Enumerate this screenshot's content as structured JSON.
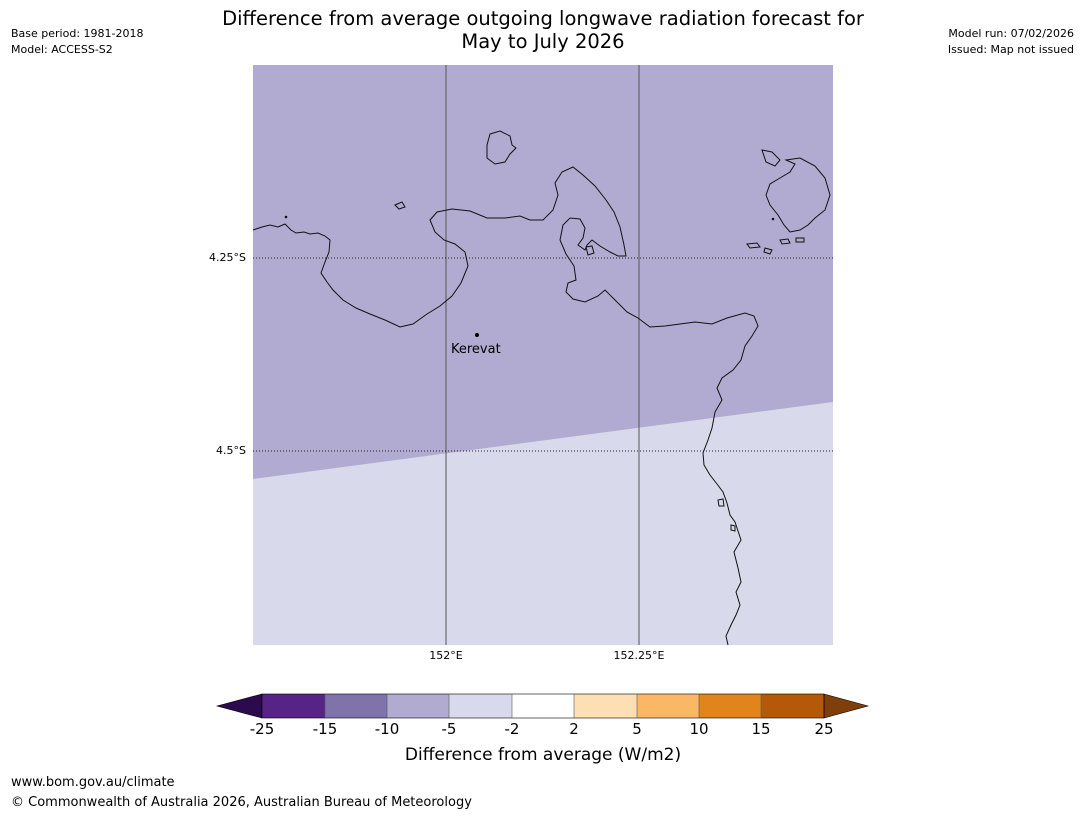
{
  "title_line1": "Difference from average outgoing longwave radiation forecast for",
  "title_line2": "May to July 2026",
  "meta_left": {
    "base_period": "Base period: 1981-2018",
    "model": "Model: ACCESS-S2"
  },
  "meta_right": {
    "model_run": "Model run: 07/02/2026",
    "issued": "Issued: Map not issued"
  },
  "map": {
    "lat_labels": [
      "4.25°S",
      "4.5°S"
    ],
    "lon_labels": [
      "152°E",
      "152.25°E"
    ],
    "place": "Kerevat",
    "regions": [
      {
        "category": "-10 to -5",
        "color": "#b1abd2"
      },
      {
        "category": "-5 to -2",
        "color": "#d8d9ea"
      }
    ]
  },
  "colorbar": {
    "ticks": [
      "-25",
      "-15",
      "-10",
      "-5",
      "-2",
      "2",
      "5",
      "10",
      "15",
      "25"
    ],
    "colors": [
      "#2d0a4e",
      "#572387",
      "#8073ac",
      "#b1abd2",
      "#d8d9ea",
      "#ffffff",
      "#fddfb3",
      "#fab866",
      "#e0841b",
      "#b45907",
      "#7f3f0a"
    ],
    "label": "Difference from average (W/m2)"
  },
  "footer": {
    "url": "www.bom.gov.au/climate",
    "copyright": "© Commonwealth of Australia 2026, Australian Bureau of Meteorology"
  }
}
